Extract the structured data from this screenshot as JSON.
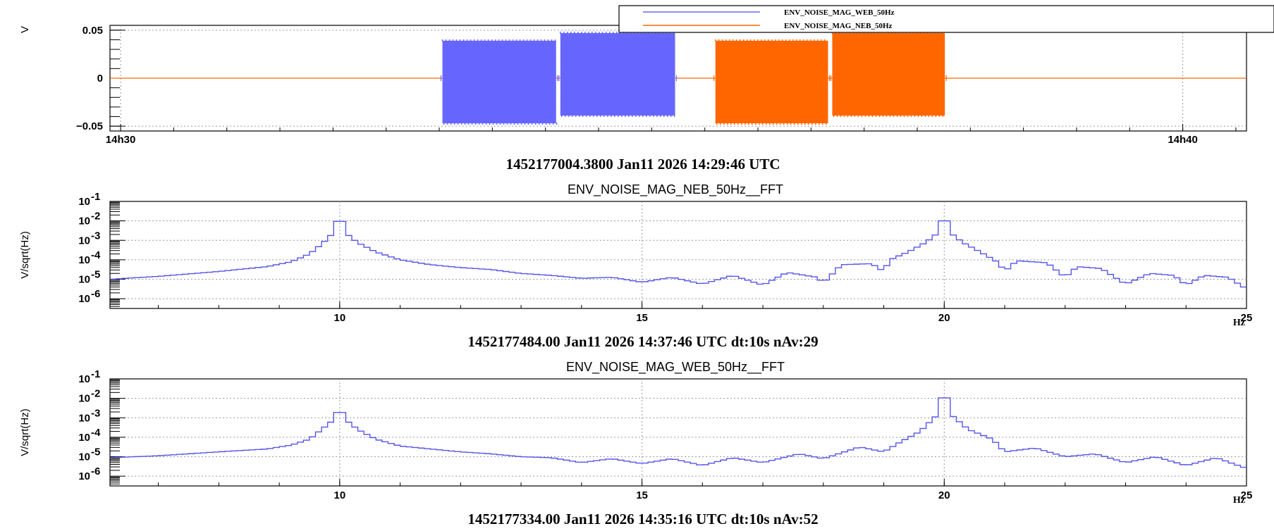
{
  "colors": {
    "web_series": "#6666ff",
    "neb_series": "#ff6600",
    "spectrum_line": "#5555ee",
    "axis": "#000000",
    "grid": "#9a9a9a"
  },
  "chart_data": [
    {
      "type": "line",
      "ylabel": "V",
      "xlabel": "",
      "x_ticks": [
        {
          "value": 0,
          "label": "14h30"
        },
        {
          "value": 10,
          "label": "14h40"
        }
      ],
      "xlim": [
        -0.1,
        10.6
      ],
      "ylim": [
        -0.055,
        0.055
      ],
      "y_ticks": [
        {
          "value": 0.05,
          "label": "0.05"
        },
        {
          "value": 0,
          "label": "0"
        },
        {
          "value": -0.05,
          "label": "−0.05"
        }
      ],
      "grid": true,
      "legend": {
        "placement": "top-right",
        "entries": [
          {
            "name": "ENV_NOISE_MAG_WEB_50Hz",
            "color": "#6666ff"
          },
          {
            "name": "ENV_NOISE_MAG_NEB_50Hz",
            "color": "#ff6600"
          }
        ]
      },
      "series": [
        {
          "name": "ENV_NOISE_MAG_WEB_50Hz",
          "color": "#6666ff",
          "blocks": [
            {
              "x0": 3.03,
              "x1": 4.1,
              "min": -0.047,
              "max": 0.039
            },
            {
              "x0": 4.14,
              "x1": 5.22,
              "min": -0.039,
              "max": 0.047
            }
          ]
        },
        {
          "name": "ENV_NOISE_MAG_NEB_50Hz",
          "color": "#ff6600",
          "baseline": 0,
          "blocks": [
            {
              "x0": 5.6,
              "x1": 6.66,
              "min": -0.047,
              "max": 0.039
            },
            {
              "x0": 6.7,
              "x1": 7.76,
              "min": -0.039,
              "max": 0.047
            }
          ]
        }
      ],
      "caption": "1452177004.3800 Jan11 2026 14:29:46 UTC"
    },
    {
      "type": "line",
      "title": "ENV_NOISE_MAG_NEB_50Hz__FFT",
      "ylabel": "V/sqrt(Hz)",
      "xlabel": "Hz",
      "scale_y": "log",
      "xlim": [
        6.2,
        25
      ],
      "ylim_exp": [
        -6.5,
        -1
      ],
      "x_ticks": [
        {
          "value": 10,
          "label": "10"
        },
        {
          "value": 15,
          "label": "15"
        },
        {
          "value": 20,
          "label": "20"
        },
        {
          "value": 25,
          "label": "25"
        }
      ],
      "y_ticks": [
        {
          "exp": -1,
          "label": "10",
          "sup": "-1"
        },
        {
          "exp": -2,
          "label": "10",
          "sup": "-2"
        },
        {
          "exp": -3,
          "label": "10",
          "sup": "-3"
        },
        {
          "exp": -4,
          "label": "10",
          "sup": "-4"
        },
        {
          "exp": -5,
          "label": "10",
          "sup": "-5"
        },
        {
          "exp": -6,
          "label": "10",
          "sup": "-6"
        }
      ],
      "grid": true,
      "spectrum": {
        "background": [
          [
            6.2,
            -5.0
          ],
          [
            7.0,
            -4.85
          ],
          [
            8.0,
            -4.6
          ],
          [
            8.8,
            -4.35
          ],
          [
            9.2,
            -4.1
          ],
          [
            9.5,
            -3.7
          ],
          [
            9.7,
            -3.2
          ],
          [
            9.8,
            -2.9
          ],
          [
            9.9,
            -2.6
          ],
          [
            10.0,
            -1.45
          ],
          [
            10.1,
            -2.6
          ],
          [
            10.2,
            -2.9
          ],
          [
            10.35,
            -3.2
          ],
          [
            10.6,
            -3.6
          ],
          [
            11.0,
            -4.0
          ],
          [
            11.5,
            -4.25
          ],
          [
            12.0,
            -4.4
          ],
          [
            12.5,
            -4.5
          ],
          [
            13.0,
            -4.7
          ],
          [
            13.5,
            -4.8
          ],
          [
            14.0,
            -4.95
          ],
          [
            14.5,
            -4.9
          ],
          [
            15.0,
            -5.15
          ],
          [
            15.5,
            -4.9
          ],
          [
            16.0,
            -5.25
          ],
          [
            16.5,
            -4.8
          ],
          [
            17.0,
            -5.3
          ],
          [
            17.4,
            -4.65
          ],
          [
            17.9,
            -4.9
          ],
          [
            18.0,
            -5.2
          ],
          [
            18.3,
            -4.25
          ],
          [
            18.8,
            -4.2
          ],
          [
            19.0,
            -4.6
          ],
          [
            19.1,
            -4.0
          ],
          [
            19.4,
            -3.6
          ],
          [
            19.7,
            -3.1
          ],
          [
            19.9,
            -2.6
          ],
          [
            20.0,
            -1.4
          ],
          [
            20.1,
            -2.6
          ],
          [
            20.3,
            -3.1
          ],
          [
            20.6,
            -3.6
          ],
          [
            20.9,
            -4.15
          ],
          [
            21.0,
            -4.6
          ],
          [
            21.2,
            -4.05
          ],
          [
            21.7,
            -4.15
          ],
          [
            22.0,
            -4.9
          ],
          [
            22.2,
            -4.35
          ],
          [
            22.6,
            -4.45
          ],
          [
            23.0,
            -5.25
          ],
          [
            23.4,
            -4.7
          ],
          [
            23.8,
            -4.8
          ],
          [
            24.0,
            -5.3
          ],
          [
            24.3,
            -4.8
          ],
          [
            24.7,
            -4.9
          ],
          [
            25.0,
            -5.5
          ]
        ]
      },
      "caption": "1452177484.00 Jan11 2026 14:37:46 UTC dt:10s nAv:29"
    },
    {
      "type": "line",
      "title": "ENV_NOISE_MAG_WEB_50Hz__FFT",
      "ylabel": "V/sqrt(Hz)",
      "xlabel": "Hz",
      "scale_y": "log",
      "xlim": [
        6.2,
        25
      ],
      "ylim_exp": [
        -6.5,
        -1
      ],
      "x_ticks": [
        {
          "value": 10,
          "label": "10"
        },
        {
          "value": 15,
          "label": "15"
        },
        {
          "value": 20,
          "label": "20"
        },
        {
          "value": 25,
          "label": "25"
        }
      ],
      "y_ticks": [
        {
          "exp": -1,
          "label": "10",
          "sup": "-1"
        },
        {
          "exp": -2,
          "label": "10",
          "sup": "-2"
        },
        {
          "exp": -3,
          "label": "10",
          "sup": "-3"
        },
        {
          "exp": -4,
          "label": "10",
          "sup": "-4"
        },
        {
          "exp": -5,
          "label": "10",
          "sup": "-5"
        },
        {
          "exp": -6,
          "label": "10",
          "sup": "-6"
        }
      ],
      "grid": true,
      "spectrum": {
        "background": [
          [
            6.2,
            -5.05
          ],
          [
            7.0,
            -4.95
          ],
          [
            8.0,
            -4.75
          ],
          [
            8.8,
            -4.6
          ],
          [
            9.2,
            -4.4
          ],
          [
            9.5,
            -4.1
          ],
          [
            9.7,
            -3.6
          ],
          [
            9.9,
            -3.1
          ],
          [
            10.0,
            -2.35
          ],
          [
            10.1,
            -3.1
          ],
          [
            10.3,
            -3.6
          ],
          [
            10.6,
            -4.1
          ],
          [
            11.0,
            -4.45
          ],
          [
            11.5,
            -4.6
          ],
          [
            12.0,
            -4.75
          ],
          [
            12.5,
            -4.85
          ],
          [
            13.0,
            -5.0
          ],
          [
            13.5,
            -5.05
          ],
          [
            14.0,
            -5.3
          ],
          [
            14.5,
            -5.1
          ],
          [
            15.0,
            -5.35
          ],
          [
            15.5,
            -5.1
          ],
          [
            16.0,
            -5.45
          ],
          [
            16.5,
            -5.05
          ],
          [
            17.0,
            -5.3
          ],
          [
            17.6,
            -4.85
          ],
          [
            18.0,
            -5.1
          ],
          [
            18.6,
            -4.5
          ],
          [
            19.0,
            -4.75
          ],
          [
            19.3,
            -4.2
          ],
          [
            19.6,
            -3.7
          ],
          [
            19.9,
            -2.8
          ],
          [
            20.0,
            -1.15
          ],
          [
            20.1,
            -2.8
          ],
          [
            20.4,
            -3.6
          ],
          [
            20.8,
            -4.1
          ],
          [
            21.0,
            -4.75
          ],
          [
            21.5,
            -4.55
          ],
          [
            22.0,
            -5.0
          ],
          [
            22.5,
            -4.85
          ],
          [
            23.0,
            -5.3
          ],
          [
            23.5,
            -5.0
          ],
          [
            24.0,
            -5.45
          ],
          [
            24.5,
            -5.05
          ],
          [
            25.0,
            -5.6
          ]
        ]
      },
      "caption": "1452177334.00 Jan11 2026 14:35:16 UTC dt:10s nAv:52"
    }
  ]
}
